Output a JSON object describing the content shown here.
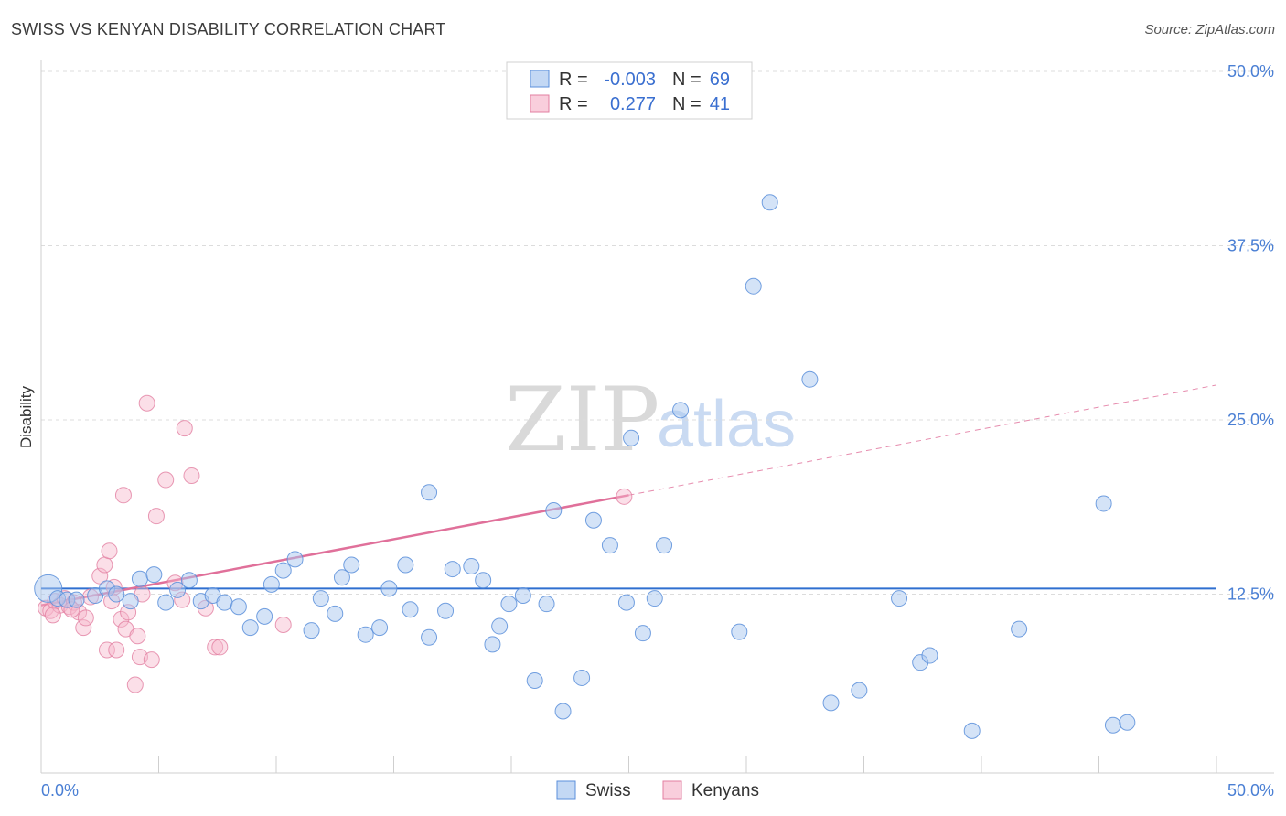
{
  "header": {
    "title": "SWISS VS KENYAN DISABILITY CORRELATION CHART",
    "source": "Source: ZipAtlas.com"
  },
  "watermark": {
    "zip": "ZIP",
    "atlas": "atlas"
  },
  "colors": {
    "swiss_fill": "#aac8f0",
    "swiss_stroke": "#5b8fdb",
    "swiss_line": "#2f6fd0",
    "kenyan_fill": "#f6b9cd",
    "kenyan_stroke": "#e27fa1",
    "kenyan_line": "#e0709a",
    "tick_label": "#4a7fd4",
    "grid": "#dcdcdc"
  },
  "legend": {
    "rows": [
      {
        "r_label": "R =",
        "r_value": "-0.003",
        "n_label": "N =",
        "n_value": "69"
      },
      {
        "r_label": "R =",
        "r_value": "0.277",
        "n_label": "N =",
        "n_value": "41"
      }
    ]
  },
  "chart_data": {
    "type": "scatter",
    "title": "SWISS VS KENYAN DISABILITY CORRELATION CHART",
    "xlabel": "",
    "ylabel": "Disability",
    "xlim": [
      0,
      50
    ],
    "ylim": [
      0,
      50
    ],
    "x_tick_labels": {
      "min": "0.0%",
      "max": "50.0%"
    },
    "y_ticks": [
      {
        "value": 12.5,
        "label": "12.5%"
      },
      {
        "value": 25.0,
        "label": "25.0%"
      },
      {
        "value": 37.5,
        "label": "37.5%"
      },
      {
        "value": 50.0,
        "label": "50.0%"
      }
    ],
    "series": [
      {
        "name": "Swiss",
        "r": -0.003,
        "n": 69,
        "trend": {
          "x0": 0,
          "y0": 12.9,
          "x1": 50,
          "y1": 12.9
        },
        "points": [
          [
            0.3,
            12.9
          ],
          [
            0.7,
            12.2
          ],
          [
            1.1,
            12.1
          ],
          [
            1.5,
            12.1
          ],
          [
            2.3,
            12.4
          ],
          [
            2.8,
            12.9
          ],
          [
            3.2,
            12.5
          ],
          [
            3.8,
            12.0
          ],
          [
            4.2,
            13.6
          ],
          [
            4.8,
            13.9
          ],
          [
            5.3,
            11.9
          ],
          [
            5.8,
            12.8
          ],
          [
            6.3,
            13.5
          ],
          [
            6.8,
            12.0
          ],
          [
            7.3,
            12.4
          ],
          [
            7.8,
            11.9
          ],
          [
            8.4,
            11.6
          ],
          [
            8.9,
            10.1
          ],
          [
            9.5,
            10.9
          ],
          [
            9.8,
            13.2
          ],
          [
            10.3,
            14.2
          ],
          [
            10.8,
            15.0
          ],
          [
            11.5,
            9.9
          ],
          [
            11.9,
            12.2
          ],
          [
            12.5,
            11.1
          ],
          [
            12.8,
            13.7
          ],
          [
            13.2,
            14.6
          ],
          [
            13.8,
            9.6
          ],
          [
            14.4,
            10.1
          ],
          [
            14.8,
            12.9
          ],
          [
            15.5,
            14.6
          ],
          [
            15.7,
            11.4
          ],
          [
            16.5,
            9.4
          ],
          [
            16.5,
            19.8
          ],
          [
            17.2,
            11.3
          ],
          [
            17.5,
            14.3
          ],
          [
            18.3,
            14.5
          ],
          [
            18.8,
            13.5
          ],
          [
            19.2,
            8.9
          ],
          [
            19.5,
            10.2
          ],
          [
            19.9,
            11.8
          ],
          [
            20.5,
            12.4
          ],
          [
            21.0,
            6.3
          ],
          [
            21.5,
            11.8
          ],
          [
            21.8,
            18.5
          ],
          [
            22.2,
            4.1
          ],
          [
            23.0,
            6.5
          ],
          [
            23.5,
            17.8
          ],
          [
            24.2,
            16.0
          ],
          [
            24.9,
            11.9
          ],
          [
            25.1,
            23.7
          ],
          [
            25.6,
            9.7
          ],
          [
            26.1,
            12.2
          ],
          [
            26.5,
            16.0
          ],
          [
            27.2,
            25.7
          ],
          [
            29.7,
            9.8
          ],
          [
            30.3,
            34.6
          ],
          [
            31.0,
            40.6
          ],
          [
            32.7,
            27.9
          ],
          [
            33.6,
            4.7
          ],
          [
            34.8,
            5.6
          ],
          [
            36.5,
            12.2
          ],
          [
            37.4,
            7.6
          ],
          [
            37.8,
            8.1
          ],
          [
            39.6,
            2.7
          ],
          [
            41.6,
            10.0
          ],
          [
            45.2,
            19.0
          ],
          [
            45.6,
            3.1
          ],
          [
            46.2,
            3.3
          ]
        ]
      },
      {
        "name": "Kenyans",
        "r": 0.277,
        "n": 41,
        "trend": {
          "x0": 0,
          "y0": 11.7,
          "x1": 25,
          "y1": 19.6,
          "dashed_to_x": 50,
          "dashed_to_y": 27.5
        },
        "points": [
          [
            0.2,
            11.5
          ],
          [
            0.4,
            11.3
          ],
          [
            0.6,
            12.0
          ],
          [
            0.8,
            11.7
          ],
          [
            1.0,
            12.2
          ],
          [
            1.2,
            11.6
          ],
          [
            1.4,
            11.9
          ],
          [
            1.6,
            11.2
          ],
          [
            1.8,
            10.1
          ],
          [
            1.9,
            10.8
          ],
          [
            2.1,
            12.3
          ],
          [
            2.5,
            13.8
          ],
          [
            2.7,
            14.6
          ],
          [
            2.8,
            8.5
          ],
          [
            2.9,
            15.6
          ],
          [
            3.1,
            13.0
          ],
          [
            3.2,
            8.5
          ],
          [
            3.4,
            10.7
          ],
          [
            3.5,
            19.6
          ],
          [
            3.6,
            10.0
          ],
          [
            3.7,
            11.2
          ],
          [
            4.0,
            6.0
          ],
          [
            4.1,
            9.5
          ],
          [
            4.2,
            8.0
          ],
          [
            4.3,
            12.5
          ],
          [
            4.5,
            26.2
          ],
          [
            4.7,
            7.8
          ],
          [
            4.9,
            18.1
          ],
          [
            5.3,
            20.7
          ],
          [
            5.7,
            13.3
          ],
          [
            6.0,
            12.1
          ],
          [
            6.1,
            24.4
          ],
          [
            6.4,
            21.0
          ],
          [
            7.0,
            11.5
          ],
          [
            7.4,
            8.7
          ],
          [
            7.6,
            8.7
          ],
          [
            10.3,
            10.3
          ],
          [
            24.8,
            19.5
          ],
          [
            0.5,
            11.0
          ],
          [
            1.3,
            11.4
          ],
          [
            3.0,
            12.0
          ]
        ]
      }
    ]
  },
  "bottom_legend": {
    "swiss": "Swiss",
    "kenyans": "Kenyans"
  }
}
